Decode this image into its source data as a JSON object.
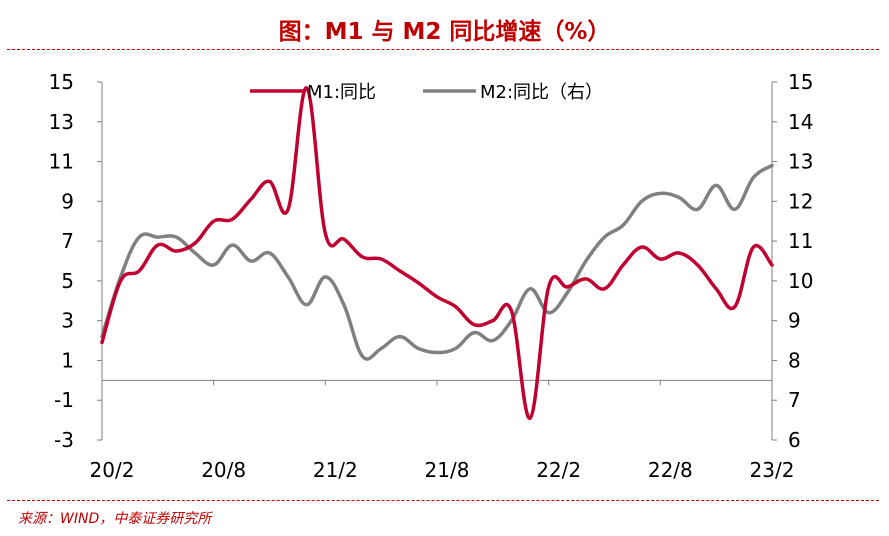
{
  "title": "图：M1 与 M2 同比增速（%）",
  "source": "来源：WIND，中泰证券研究所",
  "chart_data": {
    "type": "line",
    "x_tick_labels": [
      "20/2",
      "20/8",
      "21/2",
      "21/8",
      "22/2",
      "22/8",
      "23/2"
    ],
    "x": [
      "20/2",
      "20/3",
      "20/4",
      "20/5",
      "20/6",
      "20/7",
      "20/8",
      "20/9",
      "20/10",
      "20/11",
      "20/12",
      "21/1",
      "21/2",
      "21/3",
      "21/4",
      "21/5",
      "21/6",
      "21/7",
      "21/8",
      "21/9",
      "21/10",
      "21/11",
      "21/12",
      "22/1",
      "22/2",
      "22/3",
      "22/4",
      "22/5",
      "22/6",
      "22/7",
      "22/8",
      "22/9",
      "22/10",
      "22/11",
      "22/12",
      "23/1",
      "23/2"
    ],
    "left_axis": {
      "ylim": [
        -3,
        15
      ],
      "ticks": [
        -3,
        -1,
        1,
        3,
        5,
        7,
        9,
        11,
        13,
        15
      ]
    },
    "right_axis": {
      "ylim": [
        6,
        15
      ],
      "ticks": [
        6,
        7,
        8,
        9,
        10,
        11,
        12,
        13,
        14,
        15
      ]
    },
    "series": [
      {
        "name": "M1:同比",
        "axis": "left",
        "color": "#c00030",
        "values": [
          1.9,
          5.0,
          5.5,
          6.8,
          6.5,
          6.9,
          8.0,
          8.1,
          9.1,
          10.0,
          8.6,
          14.7,
          7.4,
          7.1,
          6.2,
          6.1,
          5.5,
          4.9,
          4.2,
          3.7,
          2.8,
          3.0,
          3.5,
          -1.9,
          4.7,
          4.7,
          5.1,
          4.6,
          5.8,
          6.7,
          6.1,
          6.4,
          5.8,
          4.6,
          3.7,
          6.7,
          5.8
        ]
      },
      {
        "name": "M2:同比（右）",
        "axis": "right",
        "color": "#808080",
        "values": [
          8.6,
          10.1,
          11.1,
          11.1,
          11.1,
          10.7,
          10.4,
          10.9,
          10.5,
          10.7,
          10.1,
          9.4,
          10.1,
          9.4,
          8.1,
          8.3,
          8.6,
          8.3,
          8.2,
          8.3,
          8.7,
          8.5,
          9.0,
          9.8,
          9.2,
          9.7,
          10.5,
          11.1,
          11.4,
          12.0,
          12.2,
          12.1,
          11.8,
          12.4,
          11.8,
          12.6,
          12.9
        ]
      }
    ],
    "legend_position": "top",
    "grid": false
  }
}
